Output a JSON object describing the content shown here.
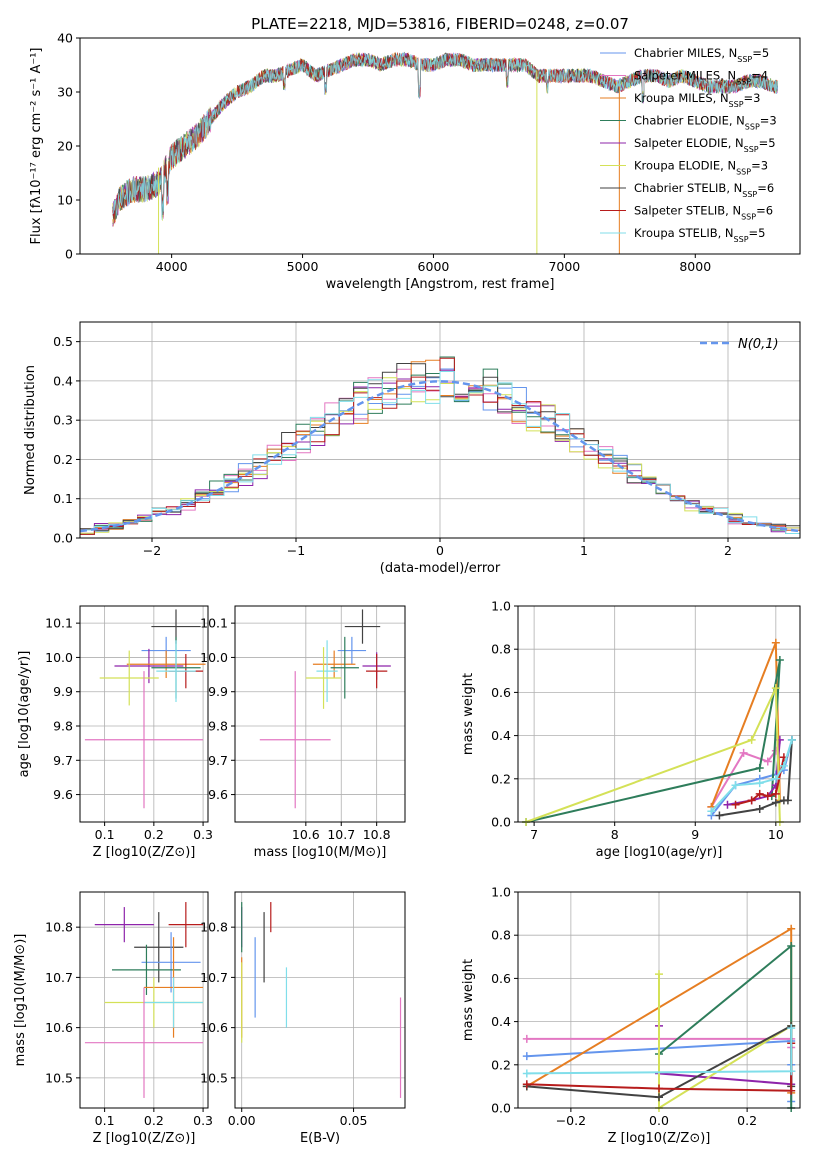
{
  "title": "PLATE=2218, MJD=53816, FIBERID=0248, z=0.07",
  "chart_data": [
    {
      "id": "spectrum",
      "type": "line",
      "xlabel": "wavelength [Angstrom, rest frame]",
      "ylabel": "Flux [fλ10⁻¹⁷ erg cm⁻² s⁻¹ A⁻¹]",
      "xlim": [
        3300,
        8800
      ],
      "ylim": [
        0,
        40
      ],
      "xticks": [
        4000,
        5000,
        6000,
        7000,
        8000
      ],
      "yticks": [
        0,
        10,
        20,
        30,
        40
      ],
      "grid": false,
      "legend": "top-right",
      "x": [
        3550,
        3600,
        3700,
        3800,
        3900,
        4000,
        4100,
        4200,
        4300,
        4400,
        4500,
        4600,
        4700,
        4800,
        4900,
        5000,
        5100,
        5200,
        5300,
        5400,
        5500,
        5600,
        5700,
        5800,
        5900,
        6000,
        6100,
        6200,
        6300,
        6400,
        6500,
        6600,
        6700,
        6800,
        6900,
        7000,
        7100,
        7200,
        7300,
        7400,
        7500,
        7600,
        7700,
        7800,
        7900,
        8000,
        8100,
        8200,
        8300,
        8400,
        8500,
        8600
      ],
      "y": [
        7,
        10,
        12,
        12,
        13,
        18,
        20,
        22,
        25,
        28,
        30,
        31,
        33,
        33,
        34,
        35,
        33,
        34,
        35,
        36,
        36,
        35,
        36,
        36,
        35,
        35,
        36,
        36,
        35,
        35,
        35,
        35,
        35,
        33,
        33,
        33,
        33,
        33,
        32,
        31,
        32,
        33,
        33,
        32,
        33,
        32,
        31,
        31,
        31,
        32,
        32,
        31
      ],
      "series": [
        {
          "name": "Chabrier MILES, N$_{SSP}$=5",
          "color": "#6495ed"
        },
        {
          "name": "Salpeter MILES, N$_{SSP}$=4",
          "color": "#e377c2"
        },
        {
          "name": "Kroupa MILES, N$_{SSP}$=3",
          "color": "#e67e22"
        },
        {
          "name": "Chabrier ELODIE, N$_{SSP}$=3",
          "color": "#2e7d5b"
        },
        {
          "name": "Salpeter ELODIE, N$_{SSP}$=5",
          "color": "#8e24aa"
        },
        {
          "name": "Kroupa ELODIE, N$_{SSP}$=3",
          "color": "#d4e157"
        },
        {
          "name": "Chabrier STELIB, N$_{SSP}$=6",
          "color": "#424242"
        },
        {
          "name": "Salpeter STELIB, N$_{SSP}$=6",
          "color": "#b71c1c"
        },
        {
          "name": "Kroupa STELIB, N$_{SSP}$=5",
          "color": "#80deea"
        }
      ]
    },
    {
      "id": "residuals",
      "type": "line",
      "xlabel": "(data-model)/error",
      "ylabel": "Normed distribution",
      "xlim": [
        -2.5,
        2.5
      ],
      "ylim": [
        0,
        0.55
      ],
      "xticks": [
        -2,
        -1,
        0,
        1,
        2
      ],
      "yticks": [
        0,
        0.1,
        0.2,
        0.3,
        0.4,
        0.5
      ],
      "grid": true,
      "legend": "top-right",
      "legend_label": "N(0,1)"
    },
    {
      "id": "age_vs_Z",
      "type": "scatter",
      "xlabel": "Z [log10(Z/Z⊙)]",
      "ylabel": "age  [log10(age/yr)]",
      "xlim": [
        0.05,
        0.31
      ],
      "ylim": [
        9.52,
        10.15
      ],
      "xticks": [
        0.1,
        0.2,
        0.3
      ],
      "yticks": [
        9.6,
        9.7,
        9.8,
        9.9,
        10.0,
        10.1
      ],
      "grid": true,
      "points": [
        {
          "x": 0.245,
          "y": 10.09,
          "xerr": 0.05,
          "yerr": 0.05,
          "c": 6
        },
        {
          "x": 0.225,
          "y": 10.02,
          "xerr": 0.05,
          "yerr": 0.04,
          "c": 0
        },
        {
          "x": 0.19,
          "y": 9.975,
          "xerr": 0.07,
          "yerr": 0.05,
          "c": 4
        },
        {
          "x": 0.225,
          "y": 9.98,
          "xerr": 0.08,
          "yerr": 0.04,
          "c": 2
        },
        {
          "x": 0.265,
          "y": 9.96,
          "xerr": 0.035,
          "yerr": 0.05,
          "c": 7
        },
        {
          "x": 0.245,
          "y": 9.97,
          "xerr": 0.05,
          "yerr": 0.09,
          "c": 3
        },
        {
          "x": 0.245,
          "y": 9.96,
          "xerr": 0.04,
          "yerr": 0.09,
          "c": 8
        },
        {
          "x": 0.15,
          "y": 9.94,
          "xerr": 0.06,
          "yerr": 0.08,
          "c": 5
        },
        {
          "x": 0.18,
          "y": 9.76,
          "xerr": 0.12,
          "yerr": 0.2,
          "c": 1
        }
      ]
    },
    {
      "id": "age_vs_mass",
      "type": "scatter",
      "xlabel": "mass [log10(M/M⊙)]",
      "ylabel": "",
      "xlim": [
        10.4,
        10.88
      ],
      "ylim": [
        9.52,
        10.15
      ],
      "xticks": [
        10.6,
        10.7,
        10.8
      ],
      "yticks": [
        9.6,
        9.7,
        9.8,
        9.9,
        10.0,
        10.1
      ],
      "grid": true,
      "points": [
        {
          "x": 10.76,
          "y": 10.09,
          "xerr": 0.05,
          "yerr": 0.05,
          "c": 6
        },
        {
          "x": 10.73,
          "y": 10.02,
          "xerr": 0.04,
          "yerr": 0.04,
          "c": 0
        },
        {
          "x": 10.8,
          "y": 9.975,
          "xerr": 0.04,
          "yerr": 0.04,
          "c": 4
        },
        {
          "x": 10.68,
          "y": 9.98,
          "xerr": 0.06,
          "yerr": 0.04,
          "c": 2
        },
        {
          "x": 10.8,
          "y": 9.96,
          "xerr": 0.03,
          "yerr": 0.05,
          "c": 7
        },
        {
          "x": 10.71,
          "y": 9.97,
          "xerr": 0.04,
          "yerr": 0.09,
          "c": 3
        },
        {
          "x": 10.66,
          "y": 9.96,
          "xerr": 0.03,
          "yerr": 0.09,
          "c": 8
        },
        {
          "x": 10.65,
          "y": 9.94,
          "xerr": 0.05,
          "yerr": 0.09,
          "c": 5
        },
        {
          "x": 10.57,
          "y": 9.76,
          "xerr": 0.1,
          "yerr": 0.2,
          "c": 1
        }
      ]
    },
    {
      "id": "mw_vs_age",
      "type": "line",
      "xlabel": "age  [log10(age/yr)]",
      "ylabel": "mass weight",
      "xlim": [
        6.8,
        10.3
      ],
      "ylim": [
        0,
        1
      ],
      "xticks": [
        7,
        8,
        9,
        10
      ],
      "yticks": [
        0.0,
        0.2,
        0.4,
        0.6,
        0.8,
        1.0
      ],
      "grid": true,
      "series": [
        {
          "c": 0,
          "x": [
            9.2,
            9.5,
            9.8,
            10.0,
            10.1,
            10.2
          ],
          "y": [
            0.03,
            0.17,
            0.2,
            0.22,
            0.24,
            0.38
          ]
        },
        {
          "c": 1,
          "x": [
            9.2,
            9.6,
            9.9,
            10.0
          ],
          "y": [
            0.07,
            0.32,
            0.28,
            0.33
          ]
        },
        {
          "c": 2,
          "x": [
            9.2,
            10.0,
            10.05
          ],
          "y": [
            0.07,
            0.83,
            0.1
          ]
        },
        {
          "c": 3,
          "x": [
            6.9,
            9.8,
            10.05,
            9.95
          ],
          "y": [
            0.0,
            0.25,
            0.75,
            0.12
          ]
        },
        {
          "c": 4,
          "x": [
            9.4,
            9.7,
            9.9,
            10.0,
            10.05
          ],
          "y": [
            0.08,
            0.1,
            0.12,
            0.17,
            0.38
          ]
        },
        {
          "c": 5,
          "x": [
            6.9,
            9.7,
            10.0,
            10.05
          ],
          "y": [
            0.0,
            0.38,
            0.62,
            0.0
          ]
        },
        {
          "c": 6,
          "x": [
            9.3,
            9.8,
            10.0,
            10.1,
            10.15,
            10.2
          ],
          "y": [
            0.03,
            0.06,
            0.09,
            0.1,
            0.1,
            0.38
          ]
        },
        {
          "c": 7,
          "x": [
            9.5,
            9.7,
            9.8,
            9.9,
            10.0,
            10.1
          ],
          "y": [
            0.08,
            0.1,
            0.13,
            0.12,
            0.13,
            0.3
          ]
        },
        {
          "c": 8,
          "x": [
            9.2,
            9.5,
            9.8,
            10.0,
            10.1,
            10.2
          ],
          "y": [
            0.05,
            0.17,
            0.18,
            0.2,
            0.26,
            0.38
          ]
        }
      ]
    },
    {
      "id": "mass_vs_Z",
      "type": "scatter",
      "xlabel": "Z [log10(Z/Z⊙)]",
      "ylabel": "mass [log10(M/M⊙)]",
      "xlim": [
        0.05,
        0.31
      ],
      "ylim": [
        10.44,
        10.87
      ],
      "xticks": [
        0.1,
        0.2,
        0.3
      ],
      "yticks": [
        10.5,
        10.6,
        10.7,
        10.8
      ],
      "grid": true,
      "points": [
        {
          "x": 0.14,
          "y": 10.805,
          "xerr": 0.06,
          "yerr": 0.035,
          "c": 4
        },
        {
          "x": 0.265,
          "y": 10.805,
          "xerr": 0.035,
          "yerr": 0.045,
          "c": 7
        },
        {
          "x": 0.21,
          "y": 10.76,
          "xerr": 0.05,
          "yerr": 0.07,
          "c": 6
        },
        {
          "x": 0.235,
          "y": 10.73,
          "xerr": 0.06,
          "yerr": 0.06,
          "c": 0
        },
        {
          "x": 0.185,
          "y": 10.715,
          "xerr": 0.07,
          "yerr": 0.05,
          "c": 3
        },
        {
          "x": 0.24,
          "y": 10.68,
          "xerr": 0.06,
          "yerr": 0.1,
          "c": 2
        },
        {
          "x": 0.2,
          "y": 10.65,
          "xerr": 0.1,
          "yerr": 0.05,
          "c": 5
        },
        {
          "x": 0.24,
          "y": 10.65,
          "xerr": 0.06,
          "yerr": 0.05,
          "c": 8
        },
        {
          "x": 0.18,
          "y": 10.57,
          "xerr": 0.12,
          "yerr": 0.11,
          "c": 1
        }
      ]
    },
    {
      "id": "mass_vs_EBV",
      "type": "scatter",
      "xlabel": "E(B-V)",
      "ylabel": "",
      "xlim": [
        -0.003,
        0.073
      ],
      "ylim": [
        10.44,
        10.87
      ],
      "xticks": [
        0.0,
        0.05
      ],
      "yticks": [
        10.5,
        10.6,
        10.7,
        10.8
      ],
      "grid": true,
      "points": [
        {
          "x": 0.0,
          "y": 10.8,
          "yerr": 0.04,
          "c": 4
        },
        {
          "x": 0.013,
          "y": 10.82,
          "yerr": 0.03,
          "c": 7
        },
        {
          "x": 0.01,
          "y": 10.76,
          "yerr": 0.07,
          "c": 6
        },
        {
          "x": 0.006,
          "y": 10.7,
          "yerr": 0.08,
          "c": 0
        },
        {
          "x": 0.0,
          "y": 10.66,
          "yerr": 0.08,
          "c": 2
        },
        {
          "x": 0.0,
          "y": 10.65,
          "yerr": 0.08,
          "c": 5
        },
        {
          "x": 0.0,
          "y": 10.8,
          "yerr": 0.05,
          "c": 3
        },
        {
          "x": 0.02,
          "y": 10.66,
          "yerr": 0.06,
          "c": 8
        },
        {
          "x": 0.071,
          "y": 10.56,
          "yerr": 0.1,
          "c": 1
        }
      ]
    },
    {
      "id": "mw_vs_Z",
      "type": "line",
      "xlabel": "Z [log10(Z/Z⊙)]",
      "ylabel": "mass weight",
      "xlim": [
        -0.32,
        0.32
      ],
      "ylim": [
        0,
        1
      ],
      "xticks": [
        -0.2,
        0.0,
        0.2
      ],
      "yticks": [
        0.0,
        0.2,
        0.4,
        0.6,
        0.8,
        1.0
      ],
      "grid": true,
      "series": [
        {
          "c": 0,
          "x": [
            -0.3,
            0.3,
            0.3,
            0.3
          ],
          "y": [
            0.24,
            0.31,
            0.03,
            0.2
          ]
        },
        {
          "c": 1,
          "x": [
            -0.3,
            0.3,
            0.3
          ],
          "y": [
            0.32,
            0.32,
            0.28
          ]
        },
        {
          "c": 2,
          "x": [
            -0.3,
            0.3,
            0.3
          ],
          "y": [
            0.1,
            0.83,
            0.07
          ]
        },
        {
          "c": 3,
          "x": [
            0.0,
            0.3,
            0.3
          ],
          "y": [
            0.25,
            0.75,
            0.0
          ]
        },
        {
          "c": 4,
          "x": [
            0.0,
            0.0,
            0.3,
            0.3
          ],
          "y": [
            0.38,
            0.16,
            0.11,
            0.17
          ]
        },
        {
          "c": 5,
          "x": [
            0.0,
            0.0,
            0.3
          ],
          "y": [
            0.62,
            0.0,
            0.38
          ]
        },
        {
          "c": 6,
          "x": [
            -0.3,
            0.0,
            0.3,
            0.3
          ],
          "y": [
            0.1,
            0.05,
            0.38,
            0.1
          ]
        },
        {
          "c": 7,
          "x": [
            -0.3,
            0.0,
            0.3,
            0.3
          ],
          "y": [
            0.11,
            0.09,
            0.08,
            0.3
          ]
        },
        {
          "c": 8,
          "x": [
            -0.3,
            0.3,
            0.3
          ],
          "y": [
            0.16,
            0.17,
            0.37
          ]
        }
      ]
    }
  ]
}
